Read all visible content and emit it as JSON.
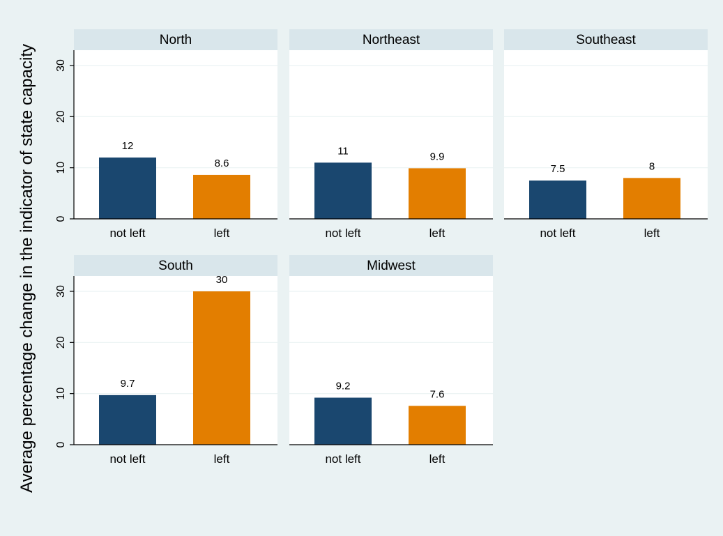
{
  "chart_data": {
    "type": "bar",
    "ylabel": "Average percentage change in the indicator of state capacity",
    "ylim": [
      0,
      33
    ],
    "yticks": [
      0,
      10,
      20,
      30
    ],
    "grid": true,
    "categories": [
      "not left",
      "left"
    ],
    "category_colors": [
      "#1a476f",
      "#e37e00"
    ],
    "panels": [
      {
        "title": "North",
        "values": [
          12,
          8.6
        ],
        "value_labels": [
          "12",
          "8.6"
        ]
      },
      {
        "title": "Northeast",
        "values": [
          11,
          9.9
        ],
        "value_labels": [
          "11",
          "9.9"
        ]
      },
      {
        "title": "Southeast",
        "values": [
          7.5,
          8
        ],
        "value_labels": [
          "7.5",
          "8"
        ]
      },
      {
        "title": "South",
        "values": [
          9.7,
          30
        ],
        "value_labels": [
          "9.7",
          "30"
        ]
      },
      {
        "title": "Midwest",
        "values": [
          9.2,
          7.6
        ],
        "value_labels": [
          "9.2",
          "7.6"
        ]
      }
    ]
  },
  "colors": {
    "background": "#eaf2f3",
    "panel_background": "#ffffff",
    "panel_header": "#d9e6eb",
    "gridline": "#eaf2f3"
  }
}
